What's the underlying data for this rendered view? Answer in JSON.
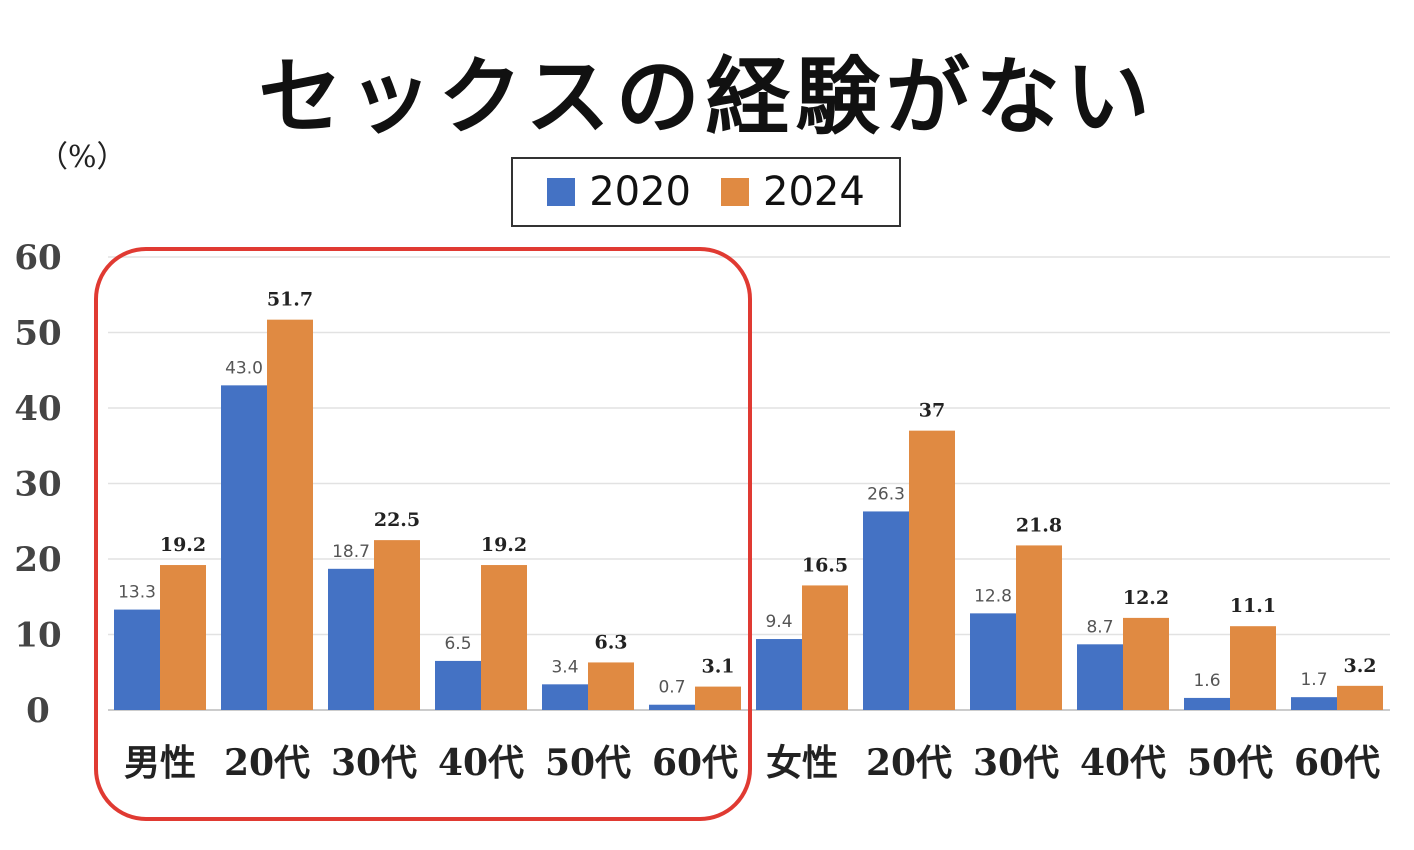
{
  "chart_data": {
    "type": "bar",
    "title": "セックスの経験がない",
    "ylabel": "（%）",
    "ylim": [
      0,
      60
    ],
    "yticks": [
      0,
      10,
      20,
      30,
      40,
      50,
      60
    ],
    "grid": true,
    "legend_position": "top-center",
    "categories": [
      "男性",
      "20代",
      "30代",
      "40代",
      "50代",
      "60代",
      "女性",
      "20代",
      "30代",
      "40代",
      "50代",
      "60代"
    ],
    "series": [
      {
        "name": "2020",
        "color": "#4472c4",
        "values": [
          13.3,
          43.0,
          18.7,
          6.5,
          3.4,
          0.7,
          9.4,
          26.3,
          12.8,
          8.7,
          1.6,
          1.7
        ],
        "labels": [
          "13.3",
          "43.0",
          "18.7",
          "6.5",
          "3.4",
          "0.7",
          "9.4",
          "26.3",
          "12.8",
          "8.7",
          "1.6",
          "1.7"
        ]
      },
      {
        "name": "2024",
        "color": "#e08a42",
        "values": [
          19.2,
          51.7,
          22.5,
          19.2,
          6.3,
          3.1,
          16.5,
          37,
          21.8,
          12.2,
          11.1,
          3.2
        ],
        "labels": [
          "19.2",
          "51.7",
          "22.5",
          "19.2",
          "6.3",
          "3.1",
          "16.5",
          "37",
          "21.8",
          "12.2",
          "11.1",
          "3.2"
        ]
      }
    ],
    "annotation": "red rounded box highlighting 男性 group"
  }
}
